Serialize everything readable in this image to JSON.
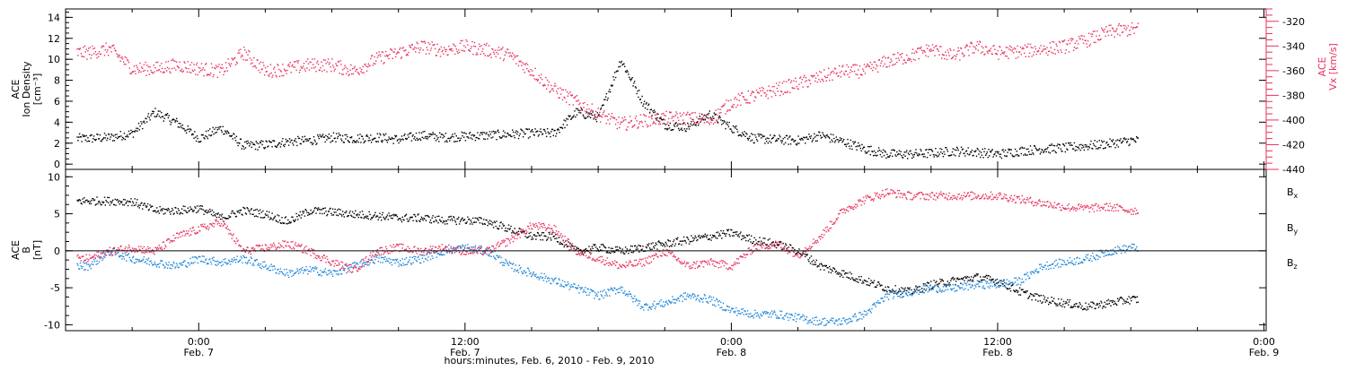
{
  "colors": {
    "black": "#000000",
    "pink": "#e8315e",
    "blue": "#1f86d8"
  },
  "title": "hours:minutes, Feb.  6, 2010 - Feb.  9, 2010",
  "xaxis": {
    "ticks": [
      {
        "time": "0:00",
        "date": "Feb. 7",
        "hour": 0
      },
      {
        "time": "12:00",
        "date": "Feb. 7",
        "hour": 12
      },
      {
        "time": "0:00",
        "date": "Feb. 8",
        "hour": 24
      },
      {
        "time": "12:00",
        "date": "Feb. 8",
        "hour": 36
      },
      {
        "time": "0:00",
        "date": "Feb. 9",
        "hour": 48
      }
    ]
  },
  "chart_data": [
    {
      "type": "scatter",
      "panel": "top",
      "left_axis": {
        "label_lines": [
          "ACE",
          "Ion Density",
          "[cm⁻³]"
        ],
        "ylim": [
          -0.5,
          14.8
        ],
        "ticks": [
          0,
          2,
          4,
          6,
          8,
          10,
          12,
          14
        ]
      },
      "right_axis": {
        "label_lines": [
          "ACE",
          "Vx [km/s]"
        ],
        "ylim": [
          -440,
          -310
        ],
        "ticks": [
          -440,
          -420,
          -400,
          -380,
          -360,
          -340,
          -320
        ],
        "color": "#e8315e"
      },
      "x": [
        -5,
        -4,
        -3,
        -2,
        -1,
        0,
        1,
        2,
        3,
        4,
        5,
        6,
        7,
        8,
        9,
        10,
        11,
        12,
        13,
        14,
        15,
        16,
        17,
        18,
        19,
        20,
        21,
        22,
        23,
        24,
        25,
        26,
        27,
        28,
        29,
        30,
        31,
        32,
        33,
        34,
        35,
        36,
        37,
        38,
        39,
        40,
        41,
        42
      ],
      "series": [
        {
          "axis": "left",
          "color": "#000000",
          "values": [
            2.5,
            2.6,
            3.0,
            5.0,
            4.0,
            2.5,
            3.5,
            1.8,
            1.9,
            2.2,
            2.3,
            2.6,
            2.5,
            2.6,
            2.4,
            2.8,
            2.6,
            2.7,
            2.8,
            2.9,
            3.0,
            3.0,
            5.0,
            4.5,
            10.0,
            6.0,
            3.8,
            3.6,
            4.8,
            3.5,
            2.5,
            2.4,
            2.3,
            2.8,
            2.2,
            1.5,
            1.0,
            1.0,
            1.1,
            1.3,
            1.2,
            1.0,
            1.3,
            1.5,
            1.6,
            1.8,
            2.0,
            2.3
          ]
        },
        {
          "axis": "right",
          "color": "#e8315e",
          "values": [
            -345,
            -342,
            -358,
            -358,
            -355,
            -358,
            -360,
            -345,
            -360,
            -358,
            -355,
            -355,
            -360,
            -350,
            -345,
            -340,
            -343,
            -340,
            -343,
            -347,
            -360,
            -375,
            -385,
            -395,
            -403,
            -400,
            -398,
            -398,
            -400,
            -385,
            -380,
            -375,
            -370,
            -365,
            -360,
            -360,
            -352,
            -348,
            -342,
            -348,
            -340,
            -345,
            -344,
            -342,
            -340,
            -335,
            -328,
            -326
          ]
        }
      ]
    },
    {
      "type": "scatter",
      "panel": "bottom",
      "left_axis": {
        "label_lines": [
          "ACE",
          "B",
          "[nT]"
        ],
        "ylim": [
          -10.8,
          11.0
        ],
        "ticks": [
          -10,
          -5,
          0,
          5,
          10
        ]
      },
      "zero_line": true,
      "x": [
        -5,
        -4,
        -3,
        -2,
        -1,
        0,
        1,
        2,
        3,
        4,
        5,
        6,
        7,
        8,
        9,
        10,
        11,
        12,
        13,
        14,
        15,
        16,
        17,
        18,
        19,
        20,
        21,
        22,
        23,
        24,
        25,
        26,
        27,
        28,
        29,
        30,
        31,
        32,
        33,
        34,
        35,
        36,
        37,
        38,
        39,
        40,
        41,
        42
      ],
      "series": [
        {
          "name": "Bx",
          "color": "#000000",
          "values": [
            6.8,
            6.8,
            6.7,
            5.5,
            5.5,
            5.8,
            4.5,
            5.5,
            5.0,
            4.0,
            5.5,
            5.3,
            5.0,
            4.8,
            4.5,
            4.5,
            4.2,
            4.2,
            4.0,
            3.0,
            2.0,
            2.0,
            0.0,
            0.5,
            0.0,
            0.5,
            1.0,
            1.5,
            2.0,
            2.5,
            1.5,
            1.0,
            0.0,
            -2.0,
            -3.0,
            -4.0,
            -5.0,
            -5.5,
            -4.5,
            -4.0,
            -3.5,
            -4.0,
            -5.5,
            -6.5,
            -7.0,
            -7.5,
            -7.0,
            -6.5
          ]
        },
        {
          "name": "By",
          "color": "#1f86d8",
          "values": [
            -2.0,
            0.0,
            -1.0,
            -1.5,
            -2.0,
            -1.0,
            -1.5,
            -1.0,
            -2.0,
            -3.0,
            -2.5,
            -3.0,
            -2.0,
            -1.0,
            -1.5,
            -1.0,
            0.0,
            0.5,
            0.0,
            -2.0,
            -3.0,
            -4.0,
            -5.0,
            -6.0,
            -5.0,
            -7.5,
            -7.0,
            -6.0,
            -6.5,
            -8.0,
            -8.5,
            -8.5,
            -9.0,
            -9.5,
            -9.5,
            -8.5,
            -6.0,
            -5.5,
            -5.0,
            -5.0,
            -4.5,
            -4.5,
            -4.0,
            -2.0,
            -1.5,
            -1.0,
            0.0,
            0.5
          ]
        },
        {
          "name": "Bz",
          "color": "#e8315e",
          "values": [
            -1.0,
            0.0,
            0.5,
            0.0,
            2.0,
            3.0,
            4.0,
            0.0,
            0.5,
            1.0,
            0.0,
            -1.5,
            -2.5,
            0.0,
            0.5,
            0.0,
            0.5,
            0.0,
            0.0,
            1.5,
            3.5,
            3.0,
            0.0,
            -1.0,
            -2.0,
            -1.5,
            0.0,
            -2.0,
            -1.5,
            -2.0,
            0.5,
            1.0,
            -0.5,
            2.0,
            5.5,
            7.0,
            8.0,
            7.5,
            7.5,
            7.5,
            7.5,
            7.5,
            7.0,
            6.5,
            6.0,
            5.8,
            6.0,
            5.5
          ]
        }
      ]
    }
  ],
  "legend": [
    {
      "label": "Bx",
      "color": "#000000"
    },
    {
      "label": "By",
      "color": "#1f86d8"
    },
    {
      "label": "Bz",
      "color": "#e8315e"
    }
  ]
}
